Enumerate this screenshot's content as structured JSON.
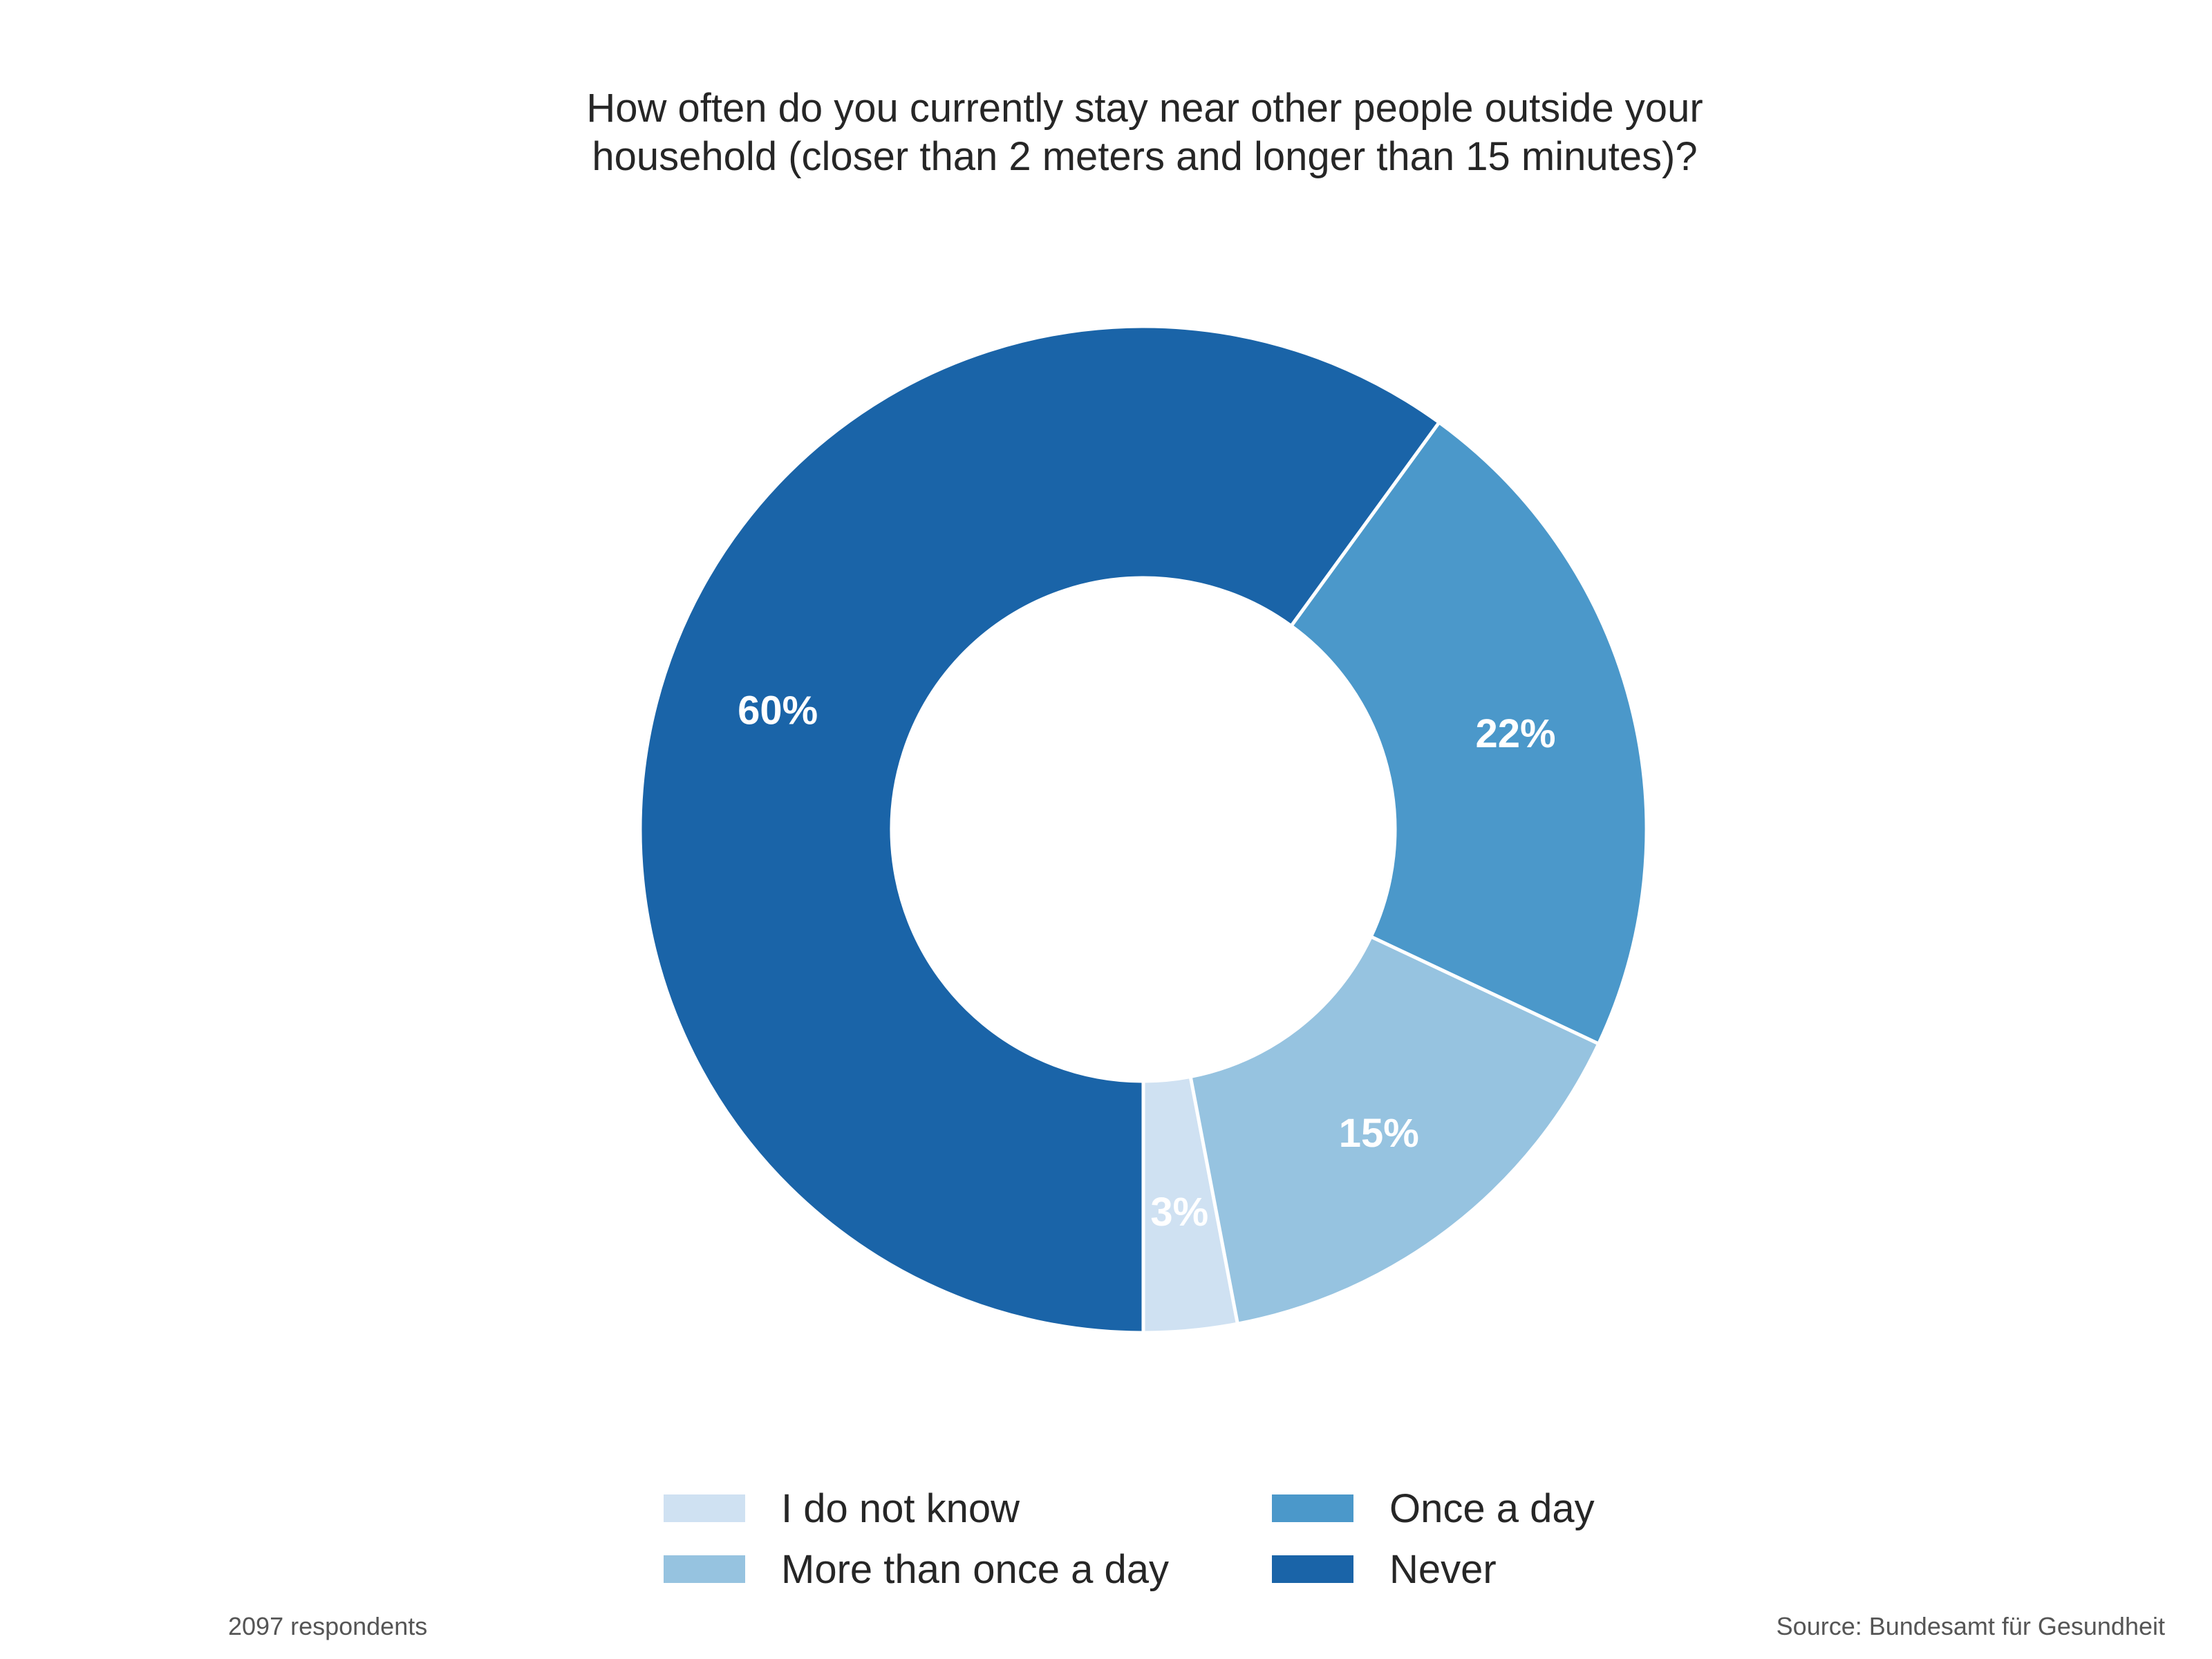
{
  "chart_data": {
    "type": "pie",
    "donut": true,
    "title": "How often do you currently stay near other people outside your\n household  (closer than 2 meters and longer than 15 minutes)?",
    "start_angle_note": "slices run counter-clockwise starting at 6 o'clock",
    "slices": [
      {
        "label": "I do not know",
        "value": 3,
        "value_label": "3%",
        "color": "#cfe1f2"
      },
      {
        "label": "More than once a day",
        "value": 15,
        "value_label": "15%",
        "color": "#96c3e0"
      },
      {
        "label": "Once a day",
        "value": 22,
        "value_label": "22%",
        "color": "#4b98ca"
      },
      {
        "label": "Never",
        "value": 60,
        "value_label": "60%",
        "color": "#1a64a8"
      }
    ],
    "legend_position": "bottom",
    "grid": false
  },
  "footnote_left": "2097 respondents",
  "footnote_right": "Source: Bundesamt für Gesundheit",
  "colors": {
    "background": "#ffffff",
    "slice_border": "#ffffff",
    "label_text": "#ffffff",
    "title_text": "#262626",
    "footnote_text": "#555555"
  }
}
